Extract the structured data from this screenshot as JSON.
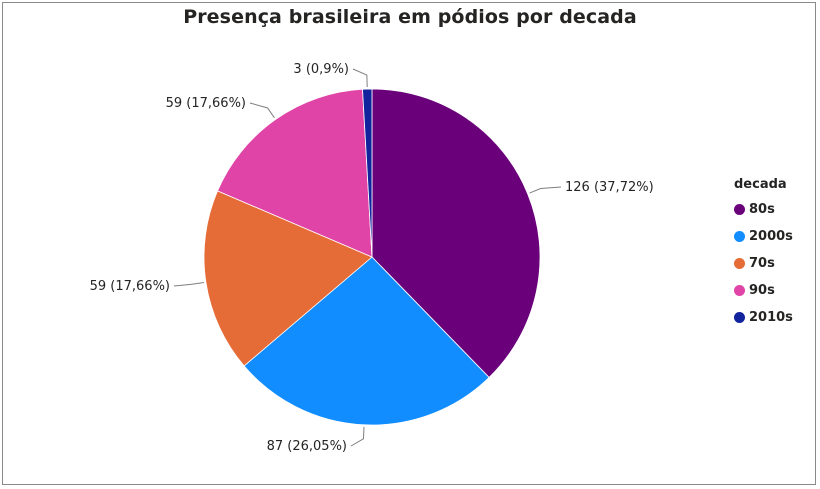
{
  "chart_data": {
    "type": "pie",
    "title": "Presença brasileira em pódios por decada",
    "legend_title": "decada",
    "legend_position": "right",
    "slices": [
      {
        "name": "80s",
        "value": 126,
        "label": "126 (37,72%)",
        "color": "#6b007b"
      },
      {
        "name": "2000s",
        "value": 87,
        "label": "87 (26,05%)",
        "color": "#118dff"
      },
      {
        "name": "70s",
        "value": 59,
        "label": "59 (17,66%)",
        "color": "#e66c37"
      },
      {
        "name": "90s",
        "value": 59,
        "label": "59 (17,66%)",
        "color": "#e044a7"
      },
      {
        "name": "2010s",
        "value": 3,
        "label": "3 (0,9%)",
        "color": "#12239e"
      }
    ]
  }
}
